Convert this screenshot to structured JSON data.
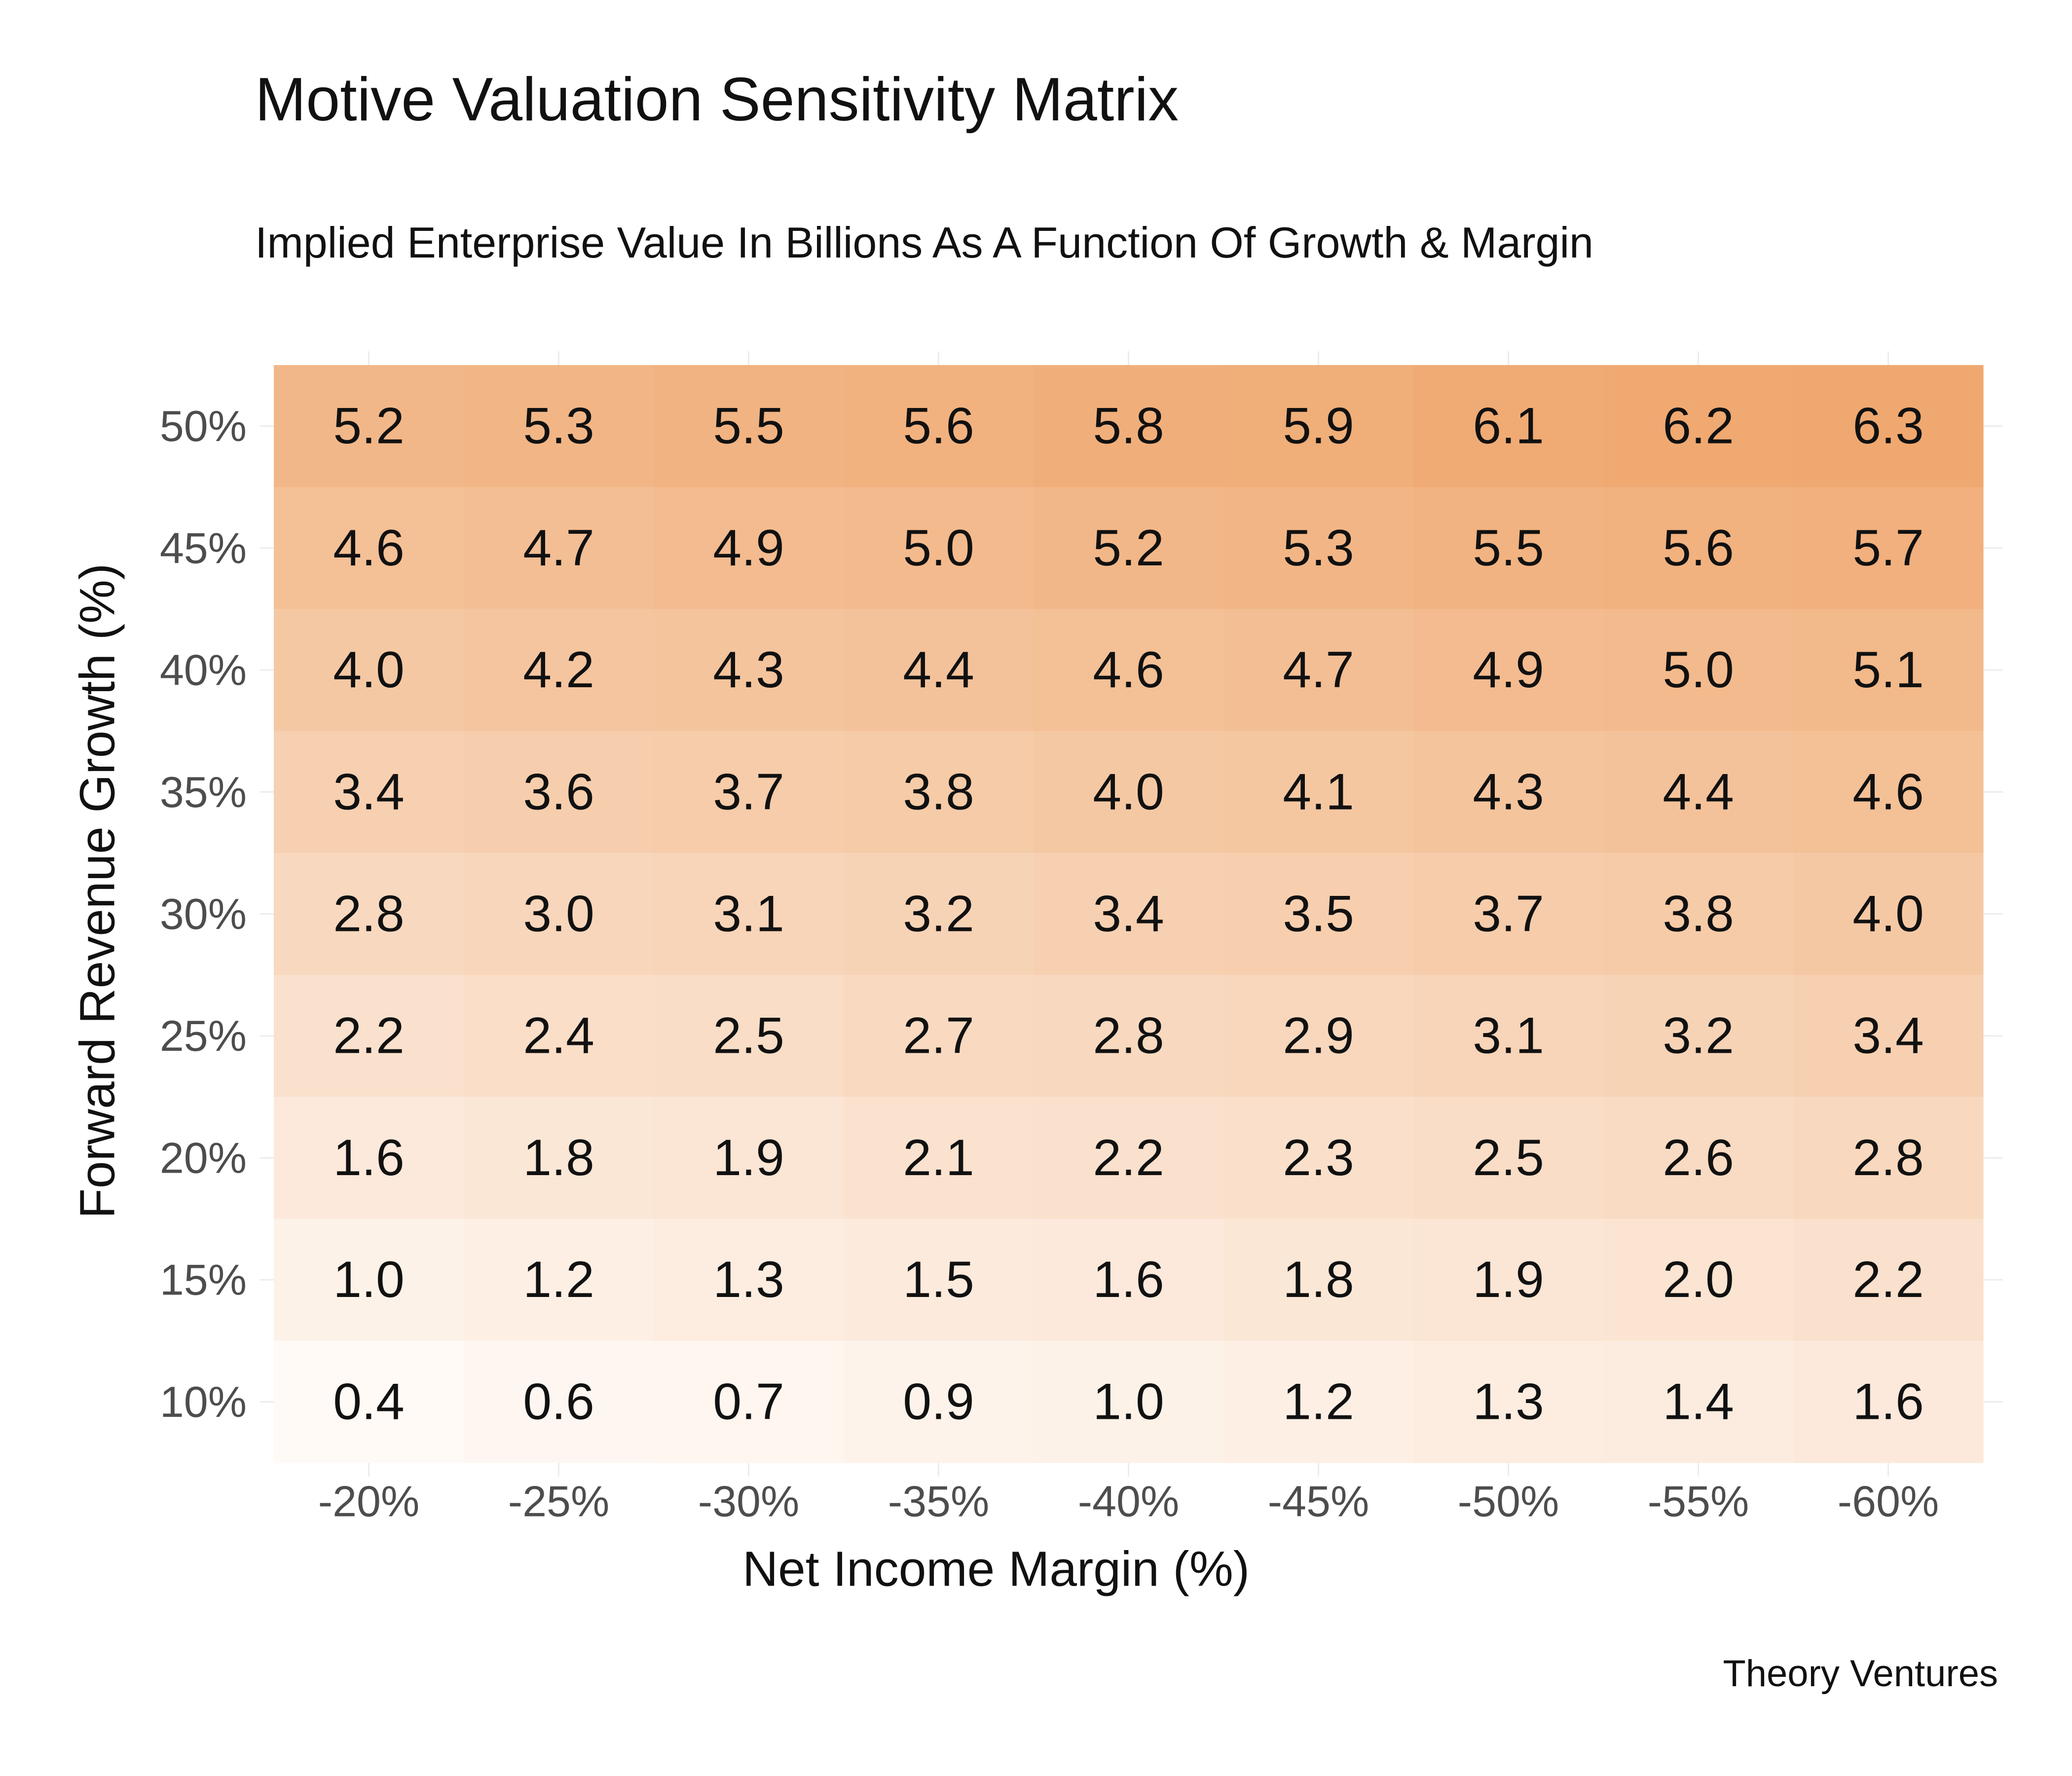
{
  "chart_data": {
    "type": "heatmap",
    "title": "Motive Valuation Sensitivity Matrix",
    "subtitle": "Implied Enterprise Value In Billions As A Function Of Growth & Margin",
    "xlabel": "Net Income Margin (%)",
    "ylabel": "Forward Revenue Growth (%)",
    "caption": "Theory Ventures",
    "x_categories": [
      "-20%",
      "-25%",
      "-30%",
      "-35%",
      "-40%",
      "-45%",
      "-50%",
      "-55%",
      "-60%"
    ],
    "y_categories": [
      "50%",
      "45%",
      "40%",
      "35%",
      "30%",
      "25%",
      "20%",
      "15%",
      "10%"
    ],
    "values": [
      [
        5.2,
        5.3,
        5.5,
        5.6,
        5.8,
        5.9,
        6.1,
        6.2,
        6.3
      ],
      [
        4.6,
        4.7,
        4.9,
        5.0,
        5.2,
        5.3,
        5.5,
        5.6,
        5.7
      ],
      [
        4.0,
        4.2,
        4.3,
        4.4,
        4.6,
        4.7,
        4.9,
        5.0,
        5.1
      ],
      [
        3.4,
        3.6,
        3.7,
        3.8,
        4.0,
        4.1,
        4.3,
        4.4,
        4.6
      ],
      [
        2.8,
        3.0,
        3.1,
        3.2,
        3.4,
        3.5,
        3.7,
        3.8,
        4.0
      ],
      [
        2.2,
        2.4,
        2.5,
        2.7,
        2.8,
        2.9,
        3.1,
        3.2,
        3.4
      ],
      [
        1.6,
        1.8,
        1.9,
        2.1,
        2.2,
        2.3,
        2.5,
        2.6,
        2.8
      ],
      [
        1.0,
        1.2,
        1.3,
        1.5,
        1.6,
        1.8,
        1.9,
        2.0,
        2.2
      ],
      [
        0.4,
        0.6,
        0.7,
        0.9,
        1.0,
        1.2,
        1.3,
        1.4,
        1.6
      ]
    ],
    "color_low": "#fffaf6",
    "color_high": "#efa86f",
    "grid": true,
    "legend": "none"
  }
}
